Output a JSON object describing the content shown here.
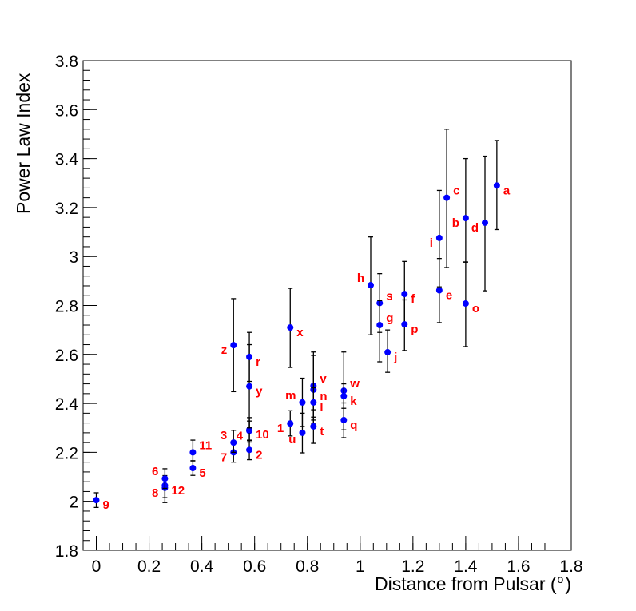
{
  "chart_data": {
    "type": "scatter",
    "title": "",
    "xlabel": "Distance from Pulsar (",
    "xlabel_sup": "o",
    "xlabel_end": ")",
    "ylabel": "Power Law Index",
    "xlim": [
      -0.05,
      1.8
    ],
    "ylim": [
      1.8,
      3.8
    ],
    "x_ticks": [
      0,
      0.2,
      0.4,
      0.6,
      0.8,
      1,
      1.2,
      1.4,
      1.6,
      1.8
    ],
    "x_tick_labels": [
      "0",
      "0.2",
      "0.4",
      "0.6",
      "0.8",
      "1",
      "1.2",
      "1.4",
      "1.6",
      "1.8"
    ],
    "y_ticks": [
      1.8,
      2,
      2.2,
      2.4,
      2.6,
      2.8,
      3,
      3.2,
      3.4,
      3.6,
      3.8
    ],
    "y_tick_labels": [
      "1.8",
      "2",
      "2.2",
      "2.4",
      "2.6",
      "2.8",
      "3",
      "3.2",
      "3.4",
      "3.6",
      "3.8"
    ],
    "grid": false,
    "marker_color": "#0000ff",
    "label_color": "#ff0000",
    "points": [
      {
        "label": "9",
        "x": 0.0,
        "y": 2.005,
        "err_lo": 0.03,
        "err_hi": 0.03,
        "side": "right"
      },
      {
        "label": "8",
        "x": 0.26,
        "y": 2.055,
        "err_lo": 0.06,
        "err_hi": 0.04,
        "side": "left"
      },
      {
        "label": "12",
        "x": 0.26,
        "y": 2.065,
        "err_lo": 0.05,
        "err_hi": 0.04,
        "side": "right"
      },
      {
        "label": "6",
        "x": 0.26,
        "y": 2.093,
        "err_lo": 0.04,
        "err_hi": 0.04,
        "side": "left-up"
      },
      {
        "label": "5",
        "x": 0.366,
        "y": 2.136,
        "err_lo": 0.03,
        "err_hi": 0.03,
        "side": "right"
      },
      {
        "label": "11",
        "x": 0.366,
        "y": 2.2,
        "err_lo": 0.035,
        "err_hi": 0.05,
        "side": "right-up"
      },
      {
        "label": "7",
        "x": 0.52,
        "y": 2.2,
        "err_lo": 0.04,
        "err_hi": 0.04,
        "side": "left"
      },
      {
        "label": "3",
        "x": 0.52,
        "y": 2.24,
        "err_lo": 0.04,
        "err_hi": 0.05,
        "side": "left-up"
      },
      {
        "label": "2",
        "x": 0.58,
        "y": 2.21,
        "err_lo": 0.04,
        "err_hi": 0.04,
        "side": "right"
      },
      {
        "label": "4",
        "x": 0.58,
        "y": 2.288,
        "err_lo": 0.04,
        "err_hi": 0.04,
        "side": "left"
      },
      {
        "label": "10",
        "x": 0.58,
        "y": 2.292,
        "err_lo": 0.05,
        "err_hi": 0.05,
        "side": "right"
      },
      {
        "label": "y",
        "x": 0.58,
        "y": 2.47,
        "err_lo": 0.17,
        "err_hi": 0.17,
        "side": "right"
      },
      {
        "label": "r",
        "x": 0.58,
        "y": 2.59,
        "err_lo": 0.1,
        "err_hi": 0.1,
        "side": "right"
      },
      {
        "label": "z",
        "x": 0.52,
        "y": 2.638,
        "err_lo": 0.19,
        "err_hi": 0.19,
        "side": "left"
      },
      {
        "label": "x",
        "x": 0.735,
        "y": 2.71,
        "err_lo": 0.163,
        "err_hi": 0.16,
        "side": "right"
      },
      {
        "label": "1",
        "x": 0.735,
        "y": 2.318,
        "err_lo": 0.051,
        "err_hi": 0.052,
        "side": "left"
      },
      {
        "label": "m",
        "x": 0.781,
        "y": 2.404,
        "err_lo": 0.098,
        "err_hi": 0.099,
        "side": "left-up"
      },
      {
        "label": "u",
        "x": 0.781,
        "y": 2.28,
        "err_lo": 0.082,
        "err_hi": 0.08,
        "side": "left-down"
      },
      {
        "label": "v",
        "x": 0.823,
        "y": 2.472,
        "err_lo": 0.14,
        "err_hi": 0.138,
        "side": "right-up"
      },
      {
        "label": "n",
        "x": 0.823,
        "y": 2.456,
        "err_lo": 0.14,
        "err_hi": 0.14,
        "side": "right-down"
      },
      {
        "label": "l",
        "x": 0.823,
        "y": 2.404,
        "err_lo": 0.06,
        "err_hi": 0.06,
        "side": "right"
      },
      {
        "label": "t",
        "x": 0.823,
        "y": 2.306,
        "err_lo": 0.069,
        "err_hi": 0.068,
        "side": "right"
      },
      {
        "label": "w",
        "x": 0.938,
        "y": 2.452,
        "err_lo": 0.16,
        "err_hi": 0.158,
        "side": "right-up"
      },
      {
        "label": "k",
        "x": 0.938,
        "y": 2.43,
        "err_lo": 0.05,
        "err_hi": 0.05,
        "side": "right"
      },
      {
        "label": "q",
        "x": 0.938,
        "y": 2.332,
        "err_lo": 0.072,
        "err_hi": 0.07,
        "side": "right"
      },
      {
        "label": "h",
        "x": 1.04,
        "y": 2.883,
        "err_lo": 0.203,
        "err_hi": 0.197,
        "side": "left-up"
      },
      {
        "label": "s",
        "x": 1.074,
        "y": 2.81,
        "err_lo": 0.12,
        "err_hi": 0.12,
        "side": "right-up"
      },
      {
        "label": "g",
        "x": 1.074,
        "y": 2.72,
        "err_lo": 0.15,
        "err_hi": 0.1,
        "side": "right-up"
      },
      {
        "label": "j",
        "x": 1.104,
        "y": 2.609,
        "err_lo": 0.082,
        "err_hi": 0.091,
        "side": "right"
      },
      {
        "label": "f",
        "x": 1.168,
        "y": 2.847,
        "err_lo": 0.13,
        "err_hi": 0.133,
        "side": "right"
      },
      {
        "label": "p",
        "x": 1.168,
        "y": 2.723,
        "err_lo": 0.107,
        "err_hi": 0.1,
        "side": "right"
      },
      {
        "label": "i",
        "x": 1.3,
        "y": 3.076,
        "err_lo": 0.2,
        "err_hi": 0.194,
        "side": "left"
      },
      {
        "label": "e",
        "x": 1.3,
        "y": 2.862,
        "err_lo": 0.132,
        "err_hi": 0.13,
        "side": "right"
      },
      {
        "label": "c",
        "x": 1.328,
        "y": 3.24,
        "err_lo": 0.285,
        "err_hi": 0.28,
        "side": "right-up"
      },
      {
        "label": "b",
        "x": 1.4,
        "y": 3.157,
        "err_lo": 0.18,
        "err_hi": 0.243,
        "side": "left"
      },
      {
        "label": "o",
        "x": 1.4,
        "y": 2.808,
        "err_lo": 0.176,
        "err_hi": 0.17,
        "side": "right"
      },
      {
        "label": "d",
        "x": 1.473,
        "y": 3.138,
        "err_lo": 0.278,
        "err_hi": 0.272,
        "side": "left"
      },
      {
        "label": "a",
        "x": 1.518,
        "y": 3.29,
        "err_lo": 0.18,
        "err_hi": 0.184,
        "side": "right"
      }
    ]
  }
}
